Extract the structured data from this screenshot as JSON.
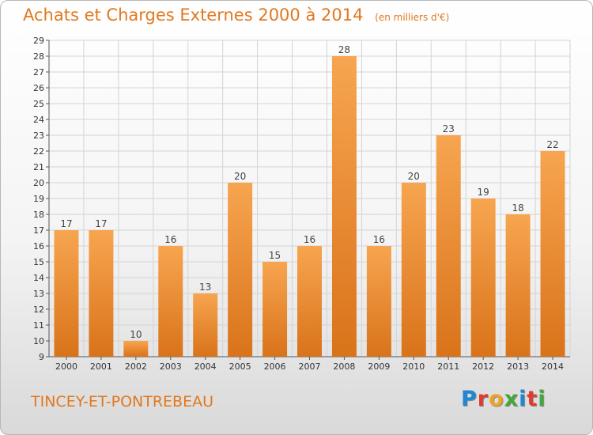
{
  "header": {
    "title": "Achats et Charges Externes 2000 à 2014",
    "subtitle": "(en milliers d'€)"
  },
  "footer": {
    "commune": "TINCEY-ET-PONTREBEAU",
    "logo_text": "Proxiti",
    "logo_colors": [
      "#1e88d6",
      "#e23b2e",
      "#f0a12a",
      "#44a83a",
      "#1e88d6",
      "#e23b2e",
      "#44a83a"
    ]
  },
  "colors": {
    "bar_top": "#f7a550",
    "bar_bottom": "#d9731a",
    "text": "#e0781e",
    "grid": "#d4d4d4"
  },
  "chart_data": {
    "type": "bar",
    "categories": [
      "2000",
      "2001",
      "2002",
      "2003",
      "2004",
      "2005",
      "2006",
      "2007",
      "2008",
      "2009",
      "2010",
      "2011",
      "2012",
      "2013",
      "2014"
    ],
    "values": [
      17,
      17,
      10,
      16,
      13,
      20,
      15,
      16,
      28,
      16,
      20,
      23,
      19,
      18,
      22
    ],
    "ylim": [
      9,
      29
    ],
    "yticks": [
      9,
      10,
      11,
      12,
      13,
      14,
      15,
      16,
      17,
      18,
      19,
      20,
      21,
      22,
      23,
      24,
      25,
      26,
      27,
      28,
      29
    ],
    "grid": true,
    "data_labels": true
  }
}
